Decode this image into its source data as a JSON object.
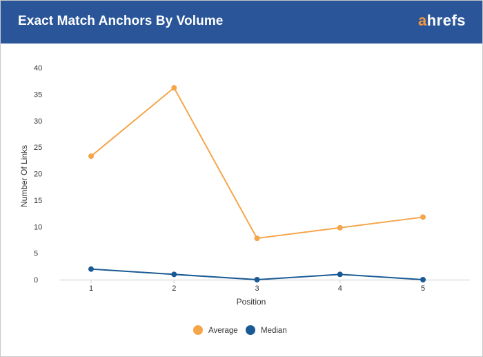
{
  "header": {
    "title": "Exact Match Anchors By Volume",
    "logo_accent": "a",
    "logo_rest": "hrefs"
  },
  "chart_data": {
    "type": "line",
    "title": "Exact Match Anchors By Volume",
    "xlabel": "Position",
    "ylabel": "Number Of Links",
    "x": [
      1,
      2,
      3,
      4,
      5
    ],
    "x_tick_labels": [
      "1",
      "2",
      "3",
      "4",
      "5"
    ],
    "y_ticks": [
      0,
      5,
      10,
      15,
      20,
      25,
      30,
      35,
      40
    ],
    "y_tick_labels": [
      "0",
      "5",
      "10",
      "15",
      "20",
      "25",
      "30",
      "35",
      "40"
    ],
    "ylim": [
      0,
      40
    ],
    "grid": false,
    "legend_position": "bottom-center",
    "series": [
      {
        "name": "Average",
        "color": "#f5a54a",
        "values": [
          23.3,
          36.2,
          7.8,
          9.8,
          11.8
        ]
      },
      {
        "name": "Median",
        "color": "#1a5a94",
        "values": [
          2,
          1,
          0,
          1,
          0
        ]
      }
    ]
  },
  "colors": {
    "header_bg": "#2a5699",
    "logo_accent": "#f5953b",
    "axis": "#cccccc"
  }
}
